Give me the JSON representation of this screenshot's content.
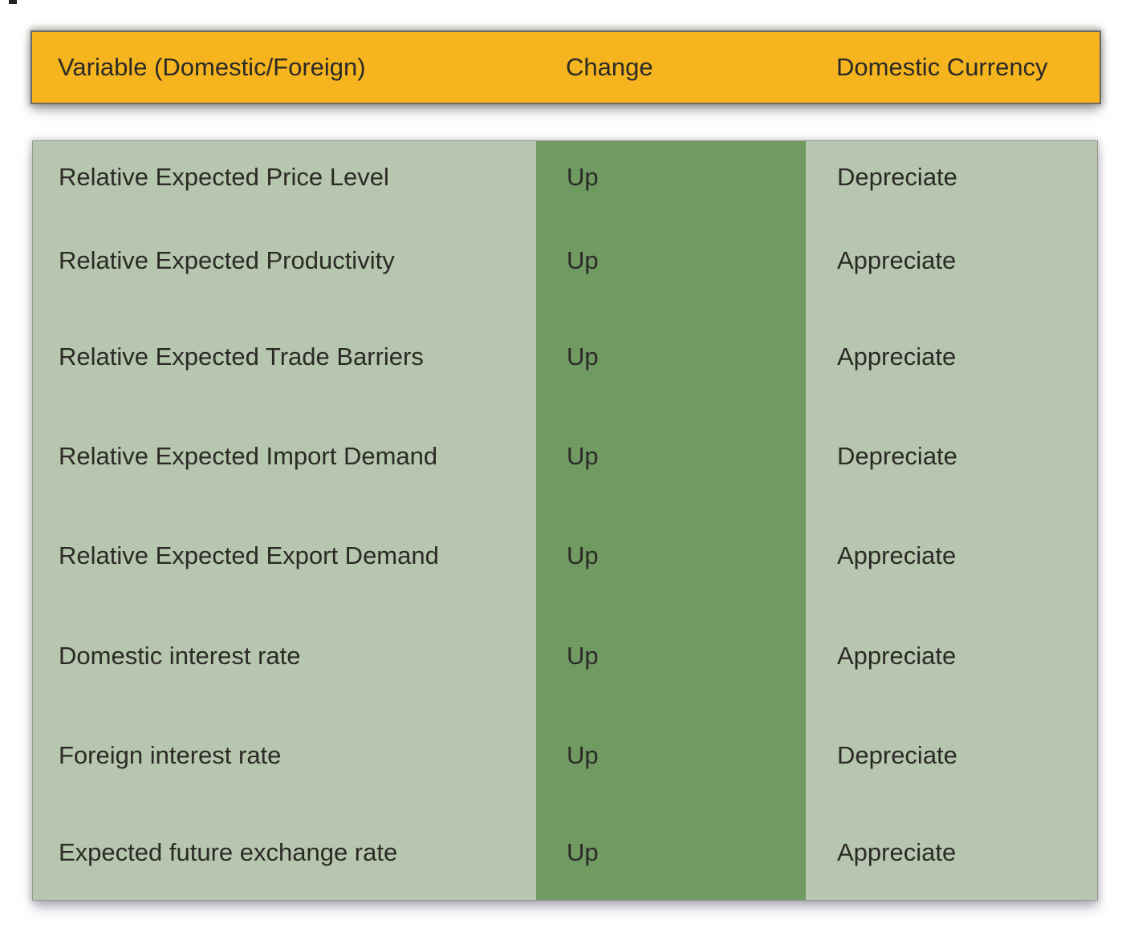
{
  "colors": {
    "header_bg": "#F6B41F",
    "body_bg": "#B7C6AF",
    "change_column_bg": "#6F9B63",
    "text": "#2B2A26"
  },
  "chart_data": {
    "type": "table",
    "columns": [
      "Variable (Domestic/Foreign)",
      "Change",
      "Domestic Currency"
    ],
    "rows": [
      [
        "Relative Expected Price Level",
        "Up",
        "Depreciate"
      ],
      [
        "Relative Expected Productivity",
        "Up",
        "Appreciate"
      ],
      [
        "Relative Expected Trade Barriers",
        "Up",
        "Appreciate"
      ],
      [
        "Relative Expected Import Demand",
        "Up",
        "Depreciate"
      ],
      [
        "Relative Expected Export Demand",
        "Up",
        "Appreciate"
      ],
      [
        "Domestic interest rate",
        "Up",
        "Appreciate"
      ],
      [
        "Foreign interest rate",
        "Up",
        "Depreciate"
      ],
      [
        "Expected future exchange rate",
        "Up",
        "Appreciate"
      ]
    ],
    "layout": {
      "grid": "off",
      "legend": "none",
      "change_column_highlighted": true
    }
  }
}
